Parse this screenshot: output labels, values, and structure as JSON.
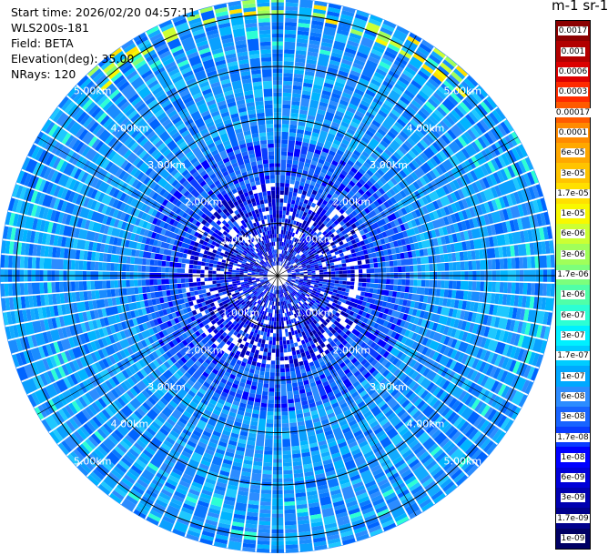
{
  "header": {
    "start_time": "Start time: 2026/02/20 04:57:11",
    "instrument": "WLS200s-181",
    "field": "Field: BETA",
    "elevation": "Elevation(deg): 35.00",
    "nrays": "NRays: 120"
  },
  "colorbar": {
    "title": "m-1 sr-1",
    "labels": [
      "0.0017",
      "0.001",
      "0.0006",
      "0.0003",
      "0.00017",
      "0.0001",
      "6e-05",
      "3e-05",
      "1.7e-05",
      "1e-05",
      "6e-06",
      "3e-06",
      "1.7e-06",
      "1e-06",
      "6e-07",
      "3e-07",
      "1.7e-07",
      "1e-07",
      "6e-08",
      "3e-08",
      "1.7e-08",
      "1e-08",
      "6e-09",
      "3e-09",
      "1.7e-09",
      "1e-09"
    ],
    "colors": [
      "#8b0000",
      "#b20000",
      "#dc0000",
      "#ff2a00",
      "#ff5a00",
      "#ff8a00",
      "#ffa800",
      "#ffc400",
      "#ffe000",
      "#f8f800",
      "#ccff33",
      "#a0ff5a",
      "#7cff7c",
      "#50ffa8",
      "#2cffd4",
      "#00f0ff",
      "#00ccff",
      "#00a8ff",
      "#2c8cff",
      "#1864ff",
      "#0a3cff",
      "#0000ff",
      "#0000d8",
      "#0000b0",
      "#00008c",
      "#000064"
    ]
  },
  "chart_data": {
    "type": "ppi",
    "azimuth_rays": 120,
    "elevation_deg": 35.0,
    "field": "BETA",
    "range_rings_km": [
      1,
      2,
      3,
      4,
      5
    ],
    "range_ring_labels": [
      "1.00km",
      "2.00km",
      "3.00km",
      "4.00km",
      "5.00km"
    ],
    "max_range_km": 5.3,
    "dominant_value": "1e-07",
    "near_range_value": "1e-08",
    "high_value_patch": {
      "azimuth_deg": [
        -48,
        48
      ],
      "range_km": [
        4.8,
        5.3
      ],
      "value": "1e-05"
    }
  }
}
